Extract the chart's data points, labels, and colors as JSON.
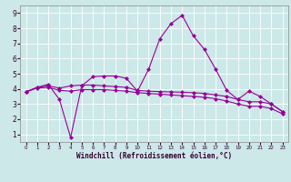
{
  "xlabel": "Windchill (Refroidissement éolien,°C)",
  "background_color": "#cce8e8",
  "grid_color": "#aacccc",
  "line_color": "#990099",
  "hours": [
    0,
    1,
    2,
    3,
    4,
    5,
    6,
    7,
    8,
    9,
    10,
    11,
    12,
    13,
    14,
    15,
    16,
    17,
    18,
    19,
    20,
    21,
    22,
    23
  ],
  "line1": [
    3.8,
    4.1,
    4.3,
    3.3,
    0.8,
    4.2,
    4.8,
    4.85,
    4.85,
    4.7,
    3.85,
    5.3,
    7.3,
    8.3,
    8.85,
    7.5,
    6.6,
    5.3,
    3.9,
    3.3,
    3.85,
    3.5,
    3.0,
    2.5
  ],
  "line2": [
    3.8,
    4.1,
    4.2,
    4.05,
    4.2,
    4.25,
    4.25,
    4.2,
    4.15,
    4.1,
    3.9,
    3.85,
    3.82,
    3.8,
    3.78,
    3.75,
    3.7,
    3.6,
    3.5,
    3.3,
    3.15,
    3.15,
    3.0,
    2.5
  ],
  "line3": [
    3.8,
    4.05,
    4.1,
    3.9,
    3.85,
    3.95,
    3.95,
    3.95,
    3.9,
    3.85,
    3.75,
    3.7,
    3.65,
    3.6,
    3.55,
    3.5,
    3.45,
    3.35,
    3.2,
    3.0,
    2.85,
    2.85,
    2.7,
    2.35
  ],
  "ylim": [
    0.5,
    9.5
  ],
  "yticks": [
    1,
    2,
    3,
    4,
    5,
    6,
    7,
    8,
    9
  ],
  "xlim": [
    -0.5,
    23.5
  ],
  "xticks": [
    0,
    1,
    2,
    3,
    4,
    5,
    6,
    7,
    8,
    9,
    10,
    11,
    12,
    13,
    14,
    15,
    16,
    17,
    18,
    19,
    20,
    21,
    22,
    23
  ],
  "marker": "D",
  "markersize": 2.0,
  "linewidth": 0.8
}
